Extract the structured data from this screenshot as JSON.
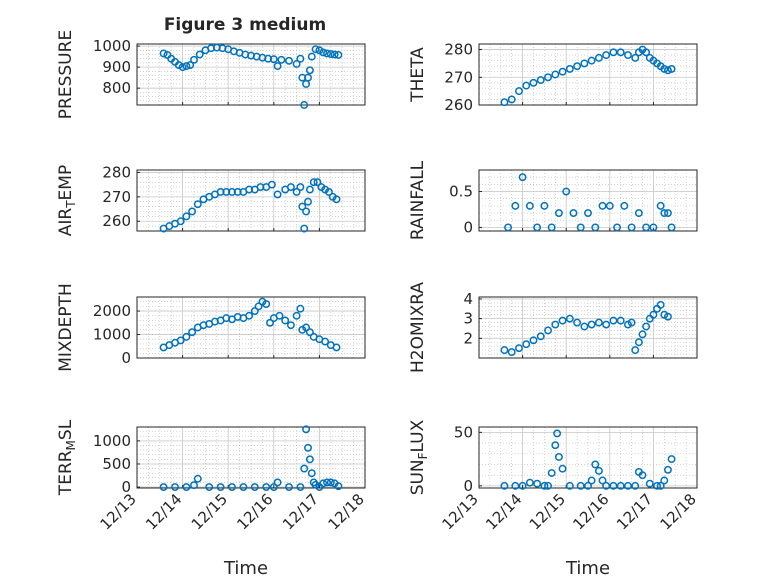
{
  "figure": {
    "title": "Figure 3 medium"
  },
  "x_axis": {
    "label": "Time",
    "range": [
      "12/13",
      "12/18"
    ],
    "ticks": [
      "12/13",
      "12/14",
      "12/15",
      "12/16",
      "12/17",
      "12/18"
    ]
  },
  "colors": {
    "marker": "#0072BD",
    "axis": "#262626",
    "grid": "#a8a8a8"
  },
  "chart_data": [
    {
      "type": "scatter",
      "ylabel": "PRESSURE",
      "ylim": [
        720,
        1010
      ],
      "yticks": [
        800,
        900,
        1000
      ],
      "grid": true,
      "x": [
        "12/13 14:00",
        "12/13 16:00",
        "12/13 18:00",
        "12/13 20:00",
        "12/13 22:00",
        "12/14 00:00",
        "12/14 02:00",
        "12/14 04:00",
        "12/14 06:00",
        "12/14 09:00",
        "12/14 12:00",
        "12/14 15:00",
        "12/14 18:00",
        "12/14 21:00",
        "12/15 00:00",
        "12/15 03:00",
        "12/15 06:00",
        "12/15 09:00",
        "12/15 12:00",
        "12/15 15:00",
        "12/15 18:00",
        "12/15 21:00",
        "12/16 00:00",
        "12/16 02:00",
        "12/16 04:00",
        "12/16 08:00",
        "12/16 12:00",
        "12/16 14:00",
        "12/16 15:00",
        "12/16 16:00",
        "12/16 17:00",
        "12/16 18:00",
        "12/16 19:00",
        "12/16 20:00",
        "12/16 22:00",
        "12/17 00:00",
        "12/17 02:00",
        "12/17 04:00",
        "12/17 06:00",
        "12/17 08:00",
        "12/17 10:00"
      ],
      "y": [
        965,
        958,
        940,
        925,
        910,
        900,
        905,
        910,
        935,
        960,
        980,
        990,
        993,
        990,
        985,
        975,
        968,
        960,
        955,
        950,
        945,
        940,
        938,
        905,
        935,
        930,
        915,
        940,
        850,
        720,
        820,
        850,
        885,
        950,
        985,
        980,
        970,
        965,
        962,
        960,
        958
      ]
    },
    {
      "type": "scatter",
      "ylabel": "THETA",
      "ylim": [
        260,
        282
      ],
      "yticks": [
        260,
        270,
        280
      ],
      "grid": true,
      "x": [
        "12/13 14:00",
        "12/13 18:00",
        "12/13 22:00",
        "12/14 02:00",
        "12/14 06:00",
        "12/14 10:00",
        "12/14 14:00",
        "12/14 18:00",
        "12/14 22:00",
        "12/15 02:00",
        "12/15 06:00",
        "12/15 10:00",
        "12/15 14:00",
        "12/15 18:00",
        "12/15 22:00",
        "12/16 02:00",
        "12/16 06:00",
        "12/16 10:00",
        "12/16 14:00",
        "12/16 16:00",
        "12/16 18:00",
        "12/16 20:00",
        "12/16 22:00",
        "12/17 00:00",
        "12/17 02:00",
        "12/17 04:00",
        "12/17 06:00",
        "12/17 08:00",
        "12/17 10:00"
      ],
      "y": [
        261,
        262,
        265,
        267,
        268,
        269,
        270,
        271,
        272,
        273,
        274,
        275,
        276,
        277,
        278,
        279,
        279,
        278,
        277,
        279,
        280,
        279,
        277,
        276,
        275,
        274,
        273,
        272.5,
        273
      ]
    },
    {
      "type": "scatter",
      "ylabel": "AIR_TEMP",
      "ylim": [
        256,
        281
      ],
      "yticks": [
        260,
        270,
        280
      ],
      "grid": true,
      "x": [
        "12/13 14:00",
        "12/13 17:00",
        "12/13 20:00",
        "12/13 23:00",
        "12/14 02:00",
        "12/14 05:00",
        "12/14 08:00",
        "12/14 11:00",
        "12/14 14:00",
        "12/14 17:00",
        "12/14 20:00",
        "12/14 23:00",
        "12/15 02:00",
        "12/15 05:00",
        "12/15 08:00",
        "12/15 11:00",
        "12/15 14:00",
        "12/15 17:00",
        "12/15 20:00",
        "12/15 23:00",
        "12/16 02:00",
        "12/16 06:00",
        "12/16 09:00",
        "12/16 12:00",
        "12/16 14:00",
        "12/16 15:00",
        "12/16 16:00",
        "12/16 17:00",
        "12/16 18:00",
        "12/16 19:00",
        "12/16 21:00",
        "12/16 23:00",
        "12/17 01:00",
        "12/17 03:00",
        "12/17 05:00",
        "12/17 07:00",
        "12/17 09:00"
      ],
      "y": [
        257,
        258,
        259,
        260,
        262,
        264,
        267,
        269,
        270,
        271,
        272,
        272,
        272,
        272,
        272,
        273,
        273,
        274,
        274,
        275,
        271,
        273,
        274,
        272,
        274,
        266,
        257,
        264,
        268,
        273,
        276,
        276,
        274,
        273,
        272,
        270,
        269
      ]
    },
    {
      "type": "scatter",
      "ylabel": "RAINFALL",
      "ylim": [
        -0.05,
        0.8
      ],
      "yticks": [
        0,
        0.5
      ],
      "grid": true,
      "x": [
        "12/13 16:00",
        "12/13 20:00",
        "12/14 00:00",
        "12/14 04:00",
        "12/14 08:00",
        "12/14 12:00",
        "12/14 16:00",
        "12/14 20:00",
        "12/15 00:00",
        "12/15 04:00",
        "12/15 08:00",
        "12/15 12:00",
        "12/15 16:00",
        "12/15 20:00",
        "12/16 00:00",
        "12/16 04:00",
        "12/16 08:00",
        "12/16 12:00",
        "12/16 16:00",
        "12/16 20:00",
        "12/17 00:00",
        "12/17 04:00",
        "12/17 06:00",
        "12/17 08:00",
        "12/17 10:00"
      ],
      "y": [
        0,
        0.3,
        0.7,
        0.3,
        0,
        0.3,
        0,
        0.2,
        0.5,
        0.2,
        0,
        0.2,
        0,
        0.3,
        0.3,
        0,
        0.3,
        0,
        0.2,
        0,
        0,
        0.3,
        0.2,
        0.2,
        0
      ]
    },
    {
      "type": "scatter",
      "ylabel": "MIXDEPTH",
      "ylim": [
        0,
        2600
      ],
      "yticks": [
        0,
        1000,
        2000
      ],
      "grid": true,
      "x": [
        "12/13 14:00",
        "12/13 17:00",
        "12/13 20:00",
        "12/13 23:00",
        "12/14 02:00",
        "12/14 05:00",
        "12/14 08:00",
        "12/14 11:00",
        "12/14 14:00",
        "12/14 17:00",
        "12/14 20:00",
        "12/14 23:00",
        "12/15 02:00",
        "12/15 05:00",
        "12/15 08:00",
        "12/15 11:00",
        "12/15 14:00",
        "12/15 16:00",
        "12/15 18:00",
        "12/15 20:00",
        "12/15 22:00",
        "12/16 00:00",
        "12/16 03:00",
        "12/16 06:00",
        "12/16 09:00",
        "12/16 12:00",
        "12/16 14:00",
        "12/16 15:00",
        "12/16 17:00",
        "12/16 19:00",
        "12/16 21:00",
        "12/17 00:00",
        "12/17 03:00",
        "12/17 06:00",
        "12/17 09:00"
      ],
      "y": [
        450,
        550,
        650,
        750,
        900,
        1100,
        1300,
        1400,
        1450,
        1550,
        1600,
        1700,
        1650,
        1750,
        1700,
        1800,
        2000,
        2200,
        2400,
        2300,
        1500,
        1700,
        1800,
        1600,
        1400,
        1800,
        2100,
        1200,
        1300,
        1100,
        900,
        800,
        700,
        550,
        450
      ]
    },
    {
      "type": "scatter",
      "ylabel": "H2OMIXRA",
      "ylim": [
        1,
        4.1
      ],
      "yticks": [
        2,
        3,
        4
      ],
      "grid": true,
      "x": [
        "12/13 14:00",
        "12/13 18:00",
        "12/13 22:00",
        "12/14 02:00",
        "12/14 06:00",
        "12/14 10:00",
        "12/14 14:00",
        "12/14 18:00",
        "12/14 22:00",
        "12/15 02:00",
        "12/15 06:00",
        "12/15 10:00",
        "12/15 14:00",
        "12/15 18:00",
        "12/15 22:00",
        "12/16 02:00",
        "12/16 06:00",
        "12/16 10:00",
        "12/16 12:00",
        "12/16 14:00",
        "12/16 16:00",
        "12/16 18:00",
        "12/16 20:00",
        "12/16 22:00",
        "12/17 00:00",
        "12/17 02:00",
        "12/17 04:00",
        "12/17 06:00",
        "12/17 08:00"
      ],
      "y": [
        1.4,
        1.3,
        1.5,
        1.7,
        1.9,
        2.1,
        2.4,
        2.7,
        2.9,
        3.0,
        2.8,
        2.6,
        2.7,
        2.8,
        2.7,
        2.9,
        2.9,
        2.7,
        2.8,
        1.4,
        1.8,
        2.2,
        2.6,
        3.0,
        3.2,
        3.5,
        3.7,
        3.2,
        3.1
      ]
    },
    {
      "type": "scatter",
      "ylabel": "TERR_MSL",
      "ylim": [
        -20,
        1300
      ],
      "yticks": [
        0,
        500,
        1000
      ],
      "grid": true,
      "x": [
        "12/13 14:00",
        "12/13 20:00",
        "12/14 02:00",
        "12/14 06:00",
        "12/14 08:00",
        "12/14 14:00",
        "12/14 20:00",
        "12/15 02:00",
        "12/15 08:00",
        "12/15 14:00",
        "12/15 20:00",
        "12/16 00:00",
        "12/16 02:00",
        "12/16 08:00",
        "12/16 14:00",
        "12/16 16:00",
        "12/16 17:00",
        "12/16 18:00",
        "12/16 19:00",
        "12/16 20:00",
        "12/16 21:00",
        "12/16 22:00",
        "12/17 00:00",
        "12/17 02:00",
        "12/17 04:00",
        "12/17 06:00",
        "12/17 08:00",
        "12/17 10:00"
      ],
      "y": [
        0,
        0,
        0,
        40,
        180,
        0,
        0,
        0,
        0,
        0,
        0,
        0,
        100,
        0,
        0,
        400,
        1250,
        850,
        600,
        300,
        100,
        50,
        0,
        80,
        100,
        100,
        80,
        20
      ]
    },
    {
      "type": "scatter",
      "ylabel": "SUN_FLUX",
      "ylim": [
        -2,
        55
      ],
      "yticks": [
        0,
        50
      ],
      "grid": true,
      "x": [
        "12/13 14:00",
        "12/13 20:00",
        "12/14 00:00",
        "12/14 04:00",
        "12/14 08:00",
        "12/14 12:00",
        "12/14 14:00",
        "12/14 16:00",
        "12/14 18:00",
        "12/14 19:00",
        "12/14 20:00",
        "12/14 22:00",
        "12/15 02:00",
        "12/15 08:00",
        "12/15 12:00",
        "12/15 14:00",
        "12/15 16:00",
        "12/15 18:00",
        "12/15 20:00",
        "12/15 22:00",
        "12/16 02:00",
        "12/16 06:00",
        "12/16 10:00",
        "12/16 14:00",
        "12/16 16:00",
        "12/16 18:00",
        "12/16 22:00",
        "12/17 02:00",
        "12/17 04:00",
        "12/17 06:00",
        "12/17 08:00",
        "12/17 10:00"
      ],
      "y": [
        0,
        0,
        0,
        3,
        2,
        0,
        0,
        12,
        38,
        49,
        27,
        16,
        0,
        0,
        0,
        5,
        20,
        14,
        5,
        0,
        0,
        0,
        0,
        0,
        13,
        10,
        2,
        0,
        0,
        5,
        15,
        25
      ]
    }
  ]
}
